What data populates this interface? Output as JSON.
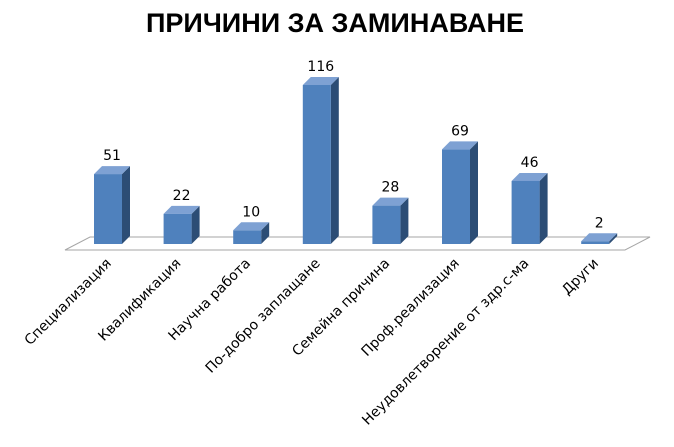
{
  "chart_data": {
    "type": "bar3d",
    "title": "ПРИЧИНИ ЗА ЗАМИНАВАНЕ",
    "categories": [
      "Специализация",
      "Квалификация",
      "Научна работа",
      "По-добро заплащане",
      "Семейна причина",
      "Проф.реализация",
      "Неудовлетворение от здр.с-ма",
      "Други"
    ],
    "values": [
      51,
      22,
      10,
      116,
      28,
      69,
      46,
      2
    ],
    "color": "#4f81bd"
  }
}
